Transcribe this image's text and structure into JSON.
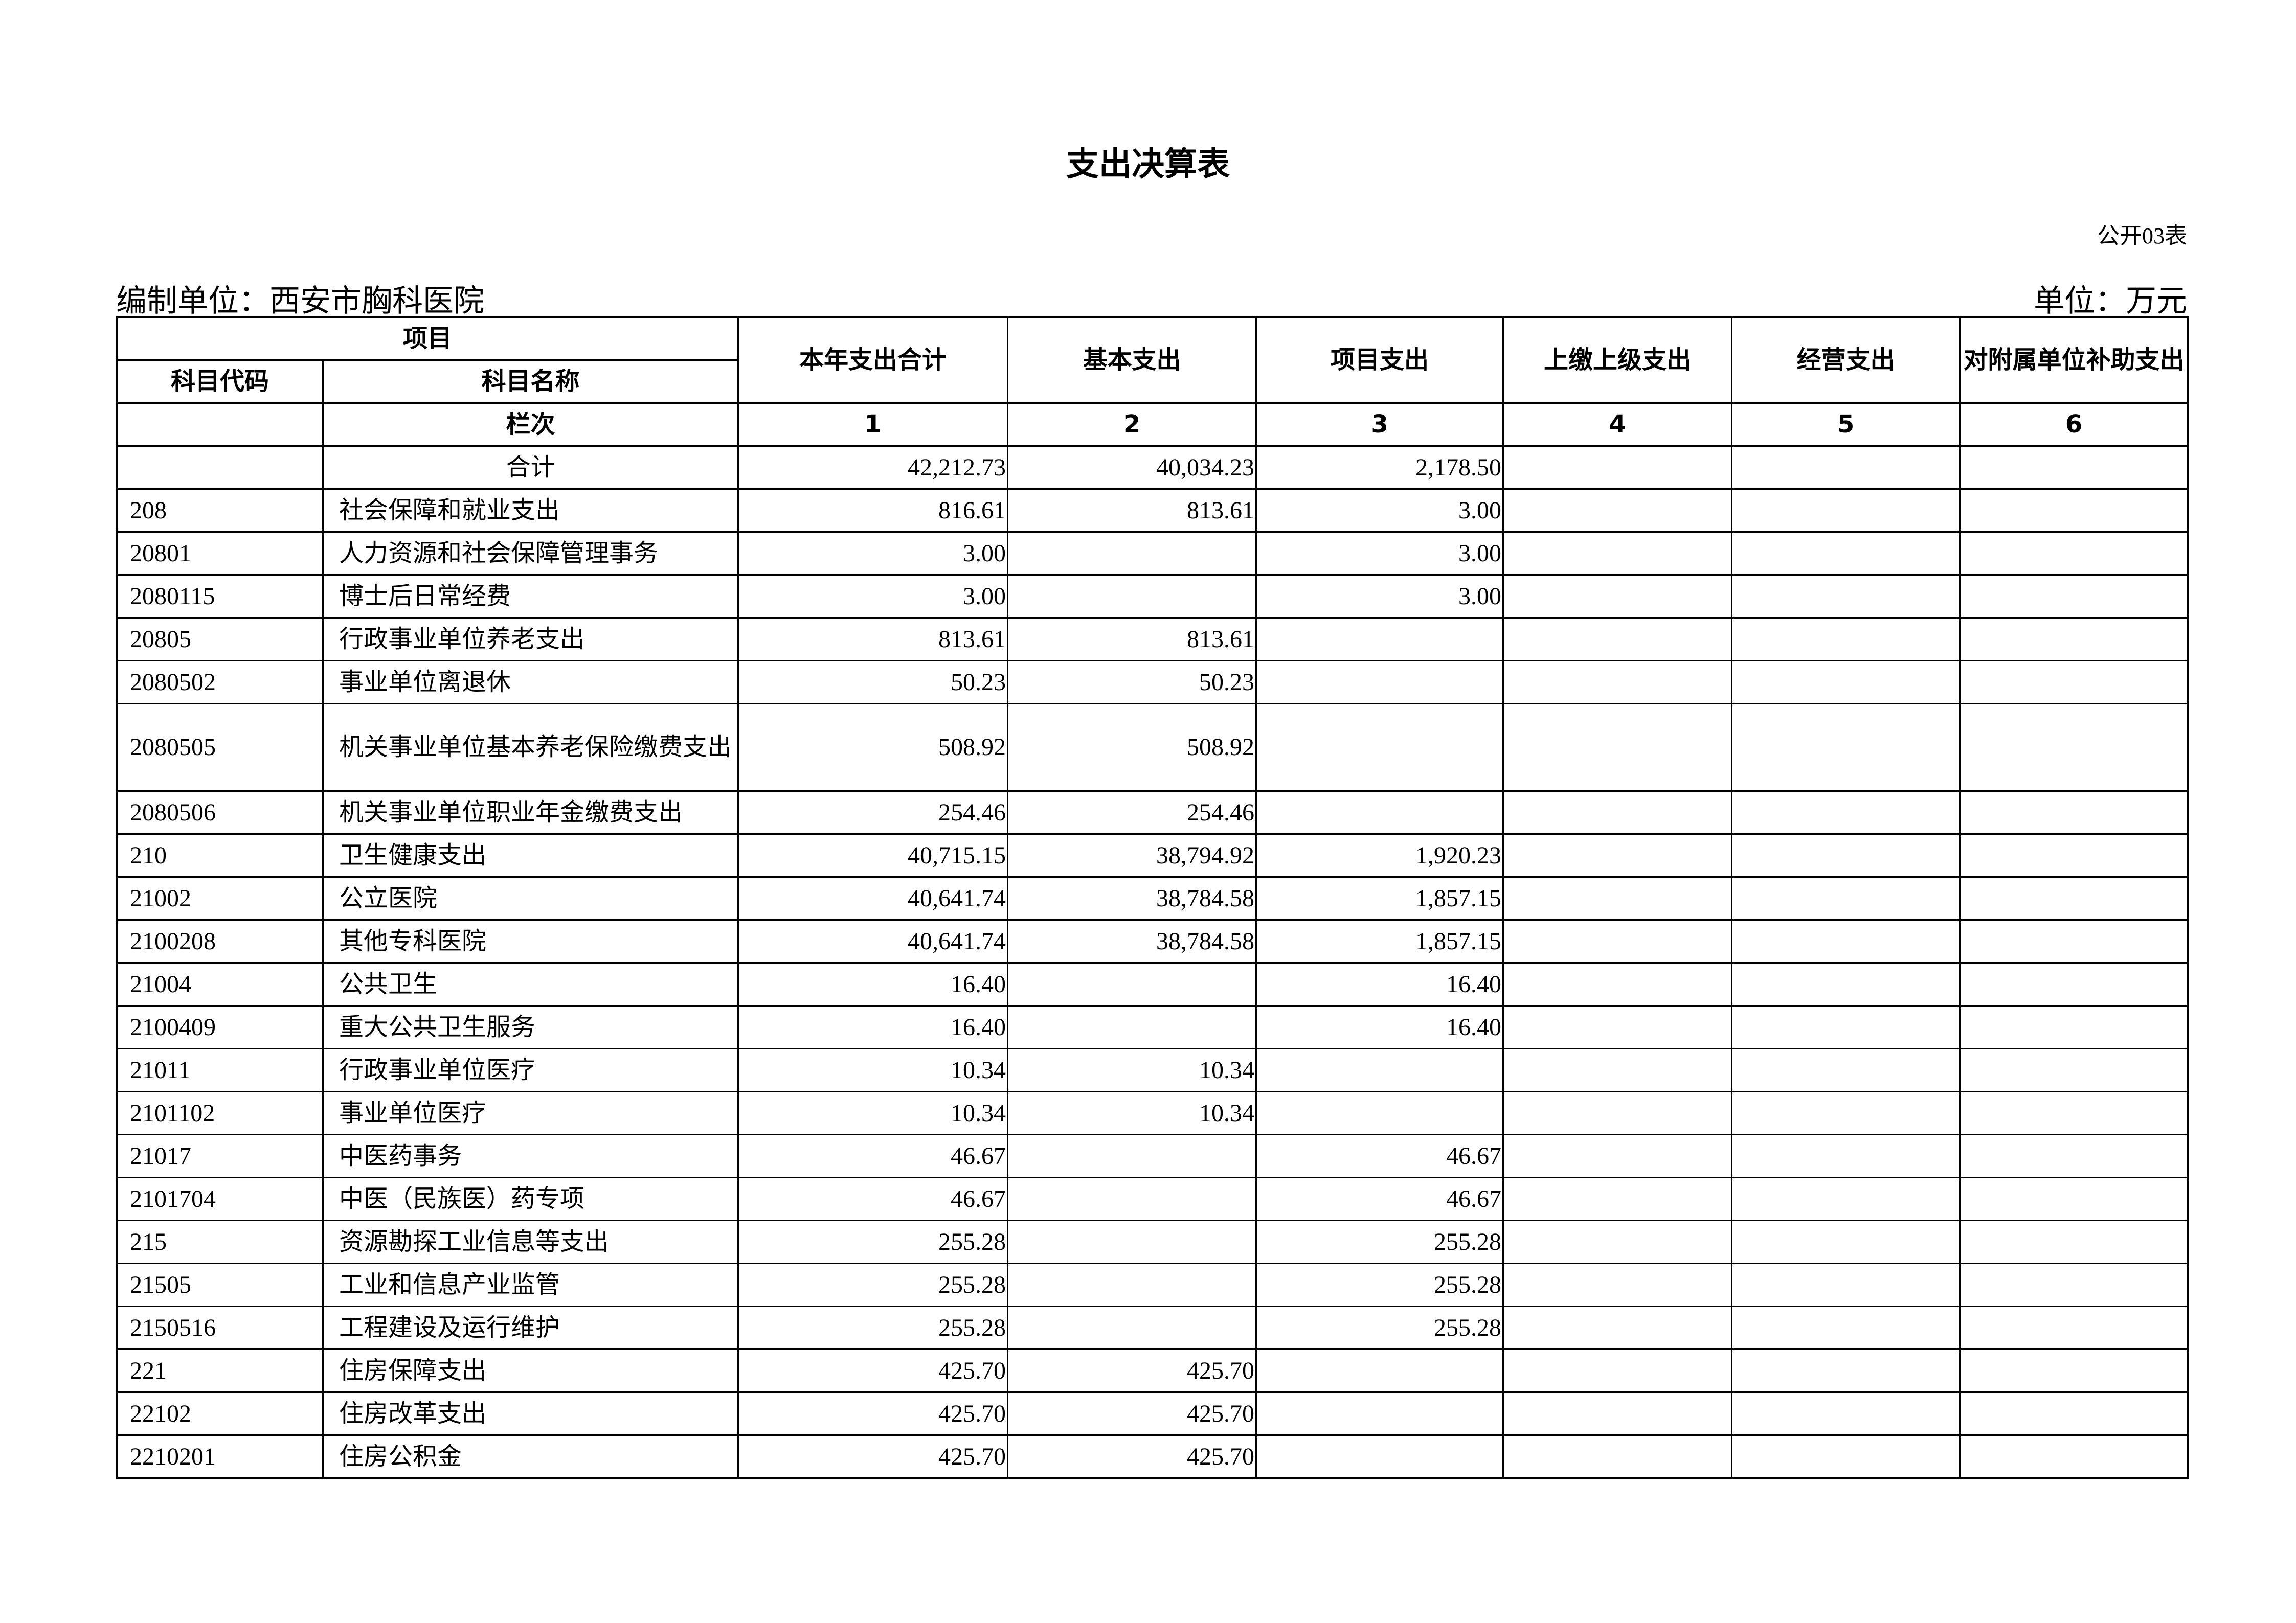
{
  "title": "支出决算表",
  "table_no": "公开03表",
  "org_label": "编制单位：西安市胸科医院",
  "unit_label": "单位：万元",
  "headers": {
    "item": "项目",
    "code": "科目代码",
    "name": "科目名称",
    "total": "本年支出合计",
    "basic": "基本支出",
    "project": "项目支出",
    "upper": "上缴上级支出",
    "business": "经营支出",
    "subsidy": "对附属单位补助支出"
  },
  "column_index": {
    "label": "栏次",
    "cols": [
      "1",
      "2",
      "3",
      "4",
      "5",
      "6"
    ]
  },
  "rows": [
    [
      "",
      "合计",
      "42,212.73",
      "40,034.23",
      "2,178.50",
      "",
      "",
      ""
    ],
    [
      "208",
      "社会保障和就业支出",
      "816.61",
      "813.61",
      "3.00",
      "",
      "",
      ""
    ],
    [
      "20801",
      "人力资源和社会保障管理事务",
      "3.00",
      "",
      "3.00",
      "",
      "",
      ""
    ],
    [
      "2080115",
      "博士后日常经费",
      "3.00",
      "",
      "3.00",
      "",
      "",
      ""
    ],
    [
      "20805",
      "行政事业单位养老支出",
      "813.61",
      "813.61",
      "",
      "",
      "",
      ""
    ],
    [
      "2080502",
      "事业单位离退休",
      "50.23",
      "50.23",
      "",
      "",
      "",
      ""
    ],
    [
      "2080505",
      "机关事业单位基本养老保险缴费支出",
      "508.92",
      "508.92",
      "",
      "",
      "",
      ""
    ],
    [
      "2080506",
      "机关事业单位职业年金缴费支出",
      "254.46",
      "254.46",
      "",
      "",
      "",
      ""
    ],
    [
      "210",
      "卫生健康支出",
      "40,715.15",
      "38,794.92",
      "1,920.23",
      "",
      "",
      ""
    ],
    [
      "21002",
      "公立医院",
      "40,641.74",
      "38,784.58",
      "1,857.15",
      "",
      "",
      ""
    ],
    [
      "2100208",
      "其他专科医院",
      "40,641.74",
      "38,784.58",
      "1,857.15",
      "",
      "",
      ""
    ],
    [
      "21004",
      "公共卫生",
      "16.40",
      "",
      "16.40",
      "",
      "",
      ""
    ],
    [
      "2100409",
      "重大公共卫生服务",
      "16.40",
      "",
      "16.40",
      "",
      "",
      ""
    ],
    [
      "21011",
      "行政事业单位医疗",
      "10.34",
      "10.34",
      "",
      "",
      "",
      ""
    ],
    [
      "2101102",
      "事业单位医疗",
      "10.34",
      "10.34",
      "",
      "",
      "",
      ""
    ],
    [
      "21017",
      "中医药事务",
      "46.67",
      "",
      "46.67",
      "",
      "",
      ""
    ],
    [
      "2101704",
      "中医（民族医）药专项",
      "46.67",
      "",
      "46.67",
      "",
      "",
      ""
    ],
    [
      "215",
      "资源勘探工业信息等支出",
      "255.28",
      "",
      "255.28",
      "",
      "",
      ""
    ],
    [
      "21505",
      "工业和信息产业监管",
      "255.28",
      "",
      "255.28",
      "",
      "",
      ""
    ],
    [
      "2150516",
      "工程建设及运行维护",
      "255.28",
      "",
      "255.28",
      "",
      "",
      ""
    ],
    [
      "221",
      "住房保障支出",
      "425.70",
      "425.70",
      "",
      "",
      "",
      ""
    ],
    [
      "22102",
      "住房改革支出",
      "425.70",
      "425.70",
      "",
      "",
      "",
      ""
    ],
    [
      "2210201",
      "住房公积金",
      "425.70",
      "425.70",
      "",
      "",
      "",
      ""
    ]
  ]
}
